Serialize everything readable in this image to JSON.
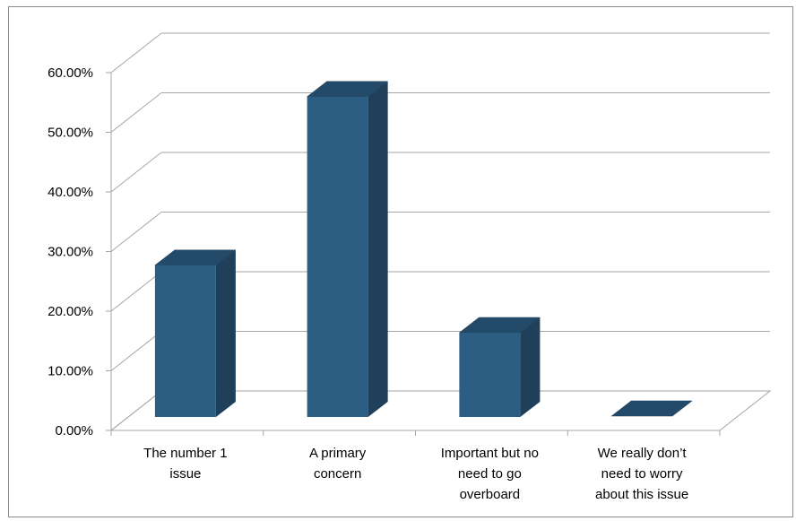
{
  "chart_data": {
    "type": "bar",
    "title": "",
    "xlabel": "",
    "ylabel": "",
    "categories": [
      [
        "The number 1",
        "issue"
      ],
      [
        "A primary",
        "concern"
      ],
      [
        "Important but no",
        "need to go",
        "overboard"
      ],
      [
        "We really don’t",
        "need to worry",
        "about this issue"
      ]
    ],
    "values": [
      0.27,
      0.57,
      0.15,
      0.0
    ],
    "ylim": [
      0,
      0.6
    ],
    "yticks": [
      "0.00%",
      "10.00%",
      "20.00%",
      "30.00%",
      "40.00%",
      "50.00%",
      "60.00%"
    ],
    "grid": true,
    "legend": "none",
    "colors": {
      "front": "#2b5e82",
      "side": "#1f3f5a",
      "top": "#244a6a",
      "grid": "#a6a6a6"
    }
  }
}
